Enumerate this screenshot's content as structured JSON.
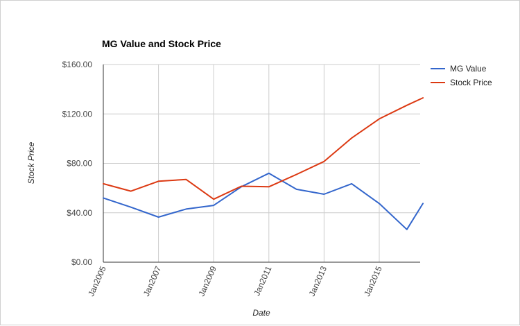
{
  "chart_data": {
    "type": "line",
    "title": "MG Value and Stock Price",
    "xlabel": "Date",
    "ylabel": "Stock Price",
    "x": [
      "2005-01",
      "2006-01",
      "2007-01",
      "2008-01",
      "2009-01",
      "2010-01",
      "2011-01",
      "2012-01",
      "2013-01",
      "2014-01",
      "2015-01",
      "2016-01",
      "2016-08"
    ],
    "x_ticks": [
      "Jan2005",
      "Jan2007",
      "Jan2009",
      "Jan2011",
      "Jan2013",
      "Jan2015"
    ],
    "ylim": [
      0,
      160
    ],
    "y_ticks": [
      "$0.00",
      "$40.00",
      "$80.00",
      "$120.00",
      "$160.00"
    ],
    "y_tick_values": [
      0,
      40,
      80,
      120,
      160
    ],
    "grid": true,
    "legend_position": "right",
    "series": [
      {
        "name": "MG Value",
        "color": "#3366cc",
        "values": [
          52,
          44.5,
          36.5,
          43,
          46,
          61,
          72,
          59,
          55,
          63.5,
          47.5,
          26.5,
          47.5
        ]
      },
      {
        "name": "Stock Price",
        "color": "#dc3912",
        "values": [
          63.5,
          57.5,
          65.5,
          67,
          51,
          61.5,
          61,
          71,
          81.5,
          100.5,
          116,
          127,
          133
        ]
      }
    ]
  }
}
